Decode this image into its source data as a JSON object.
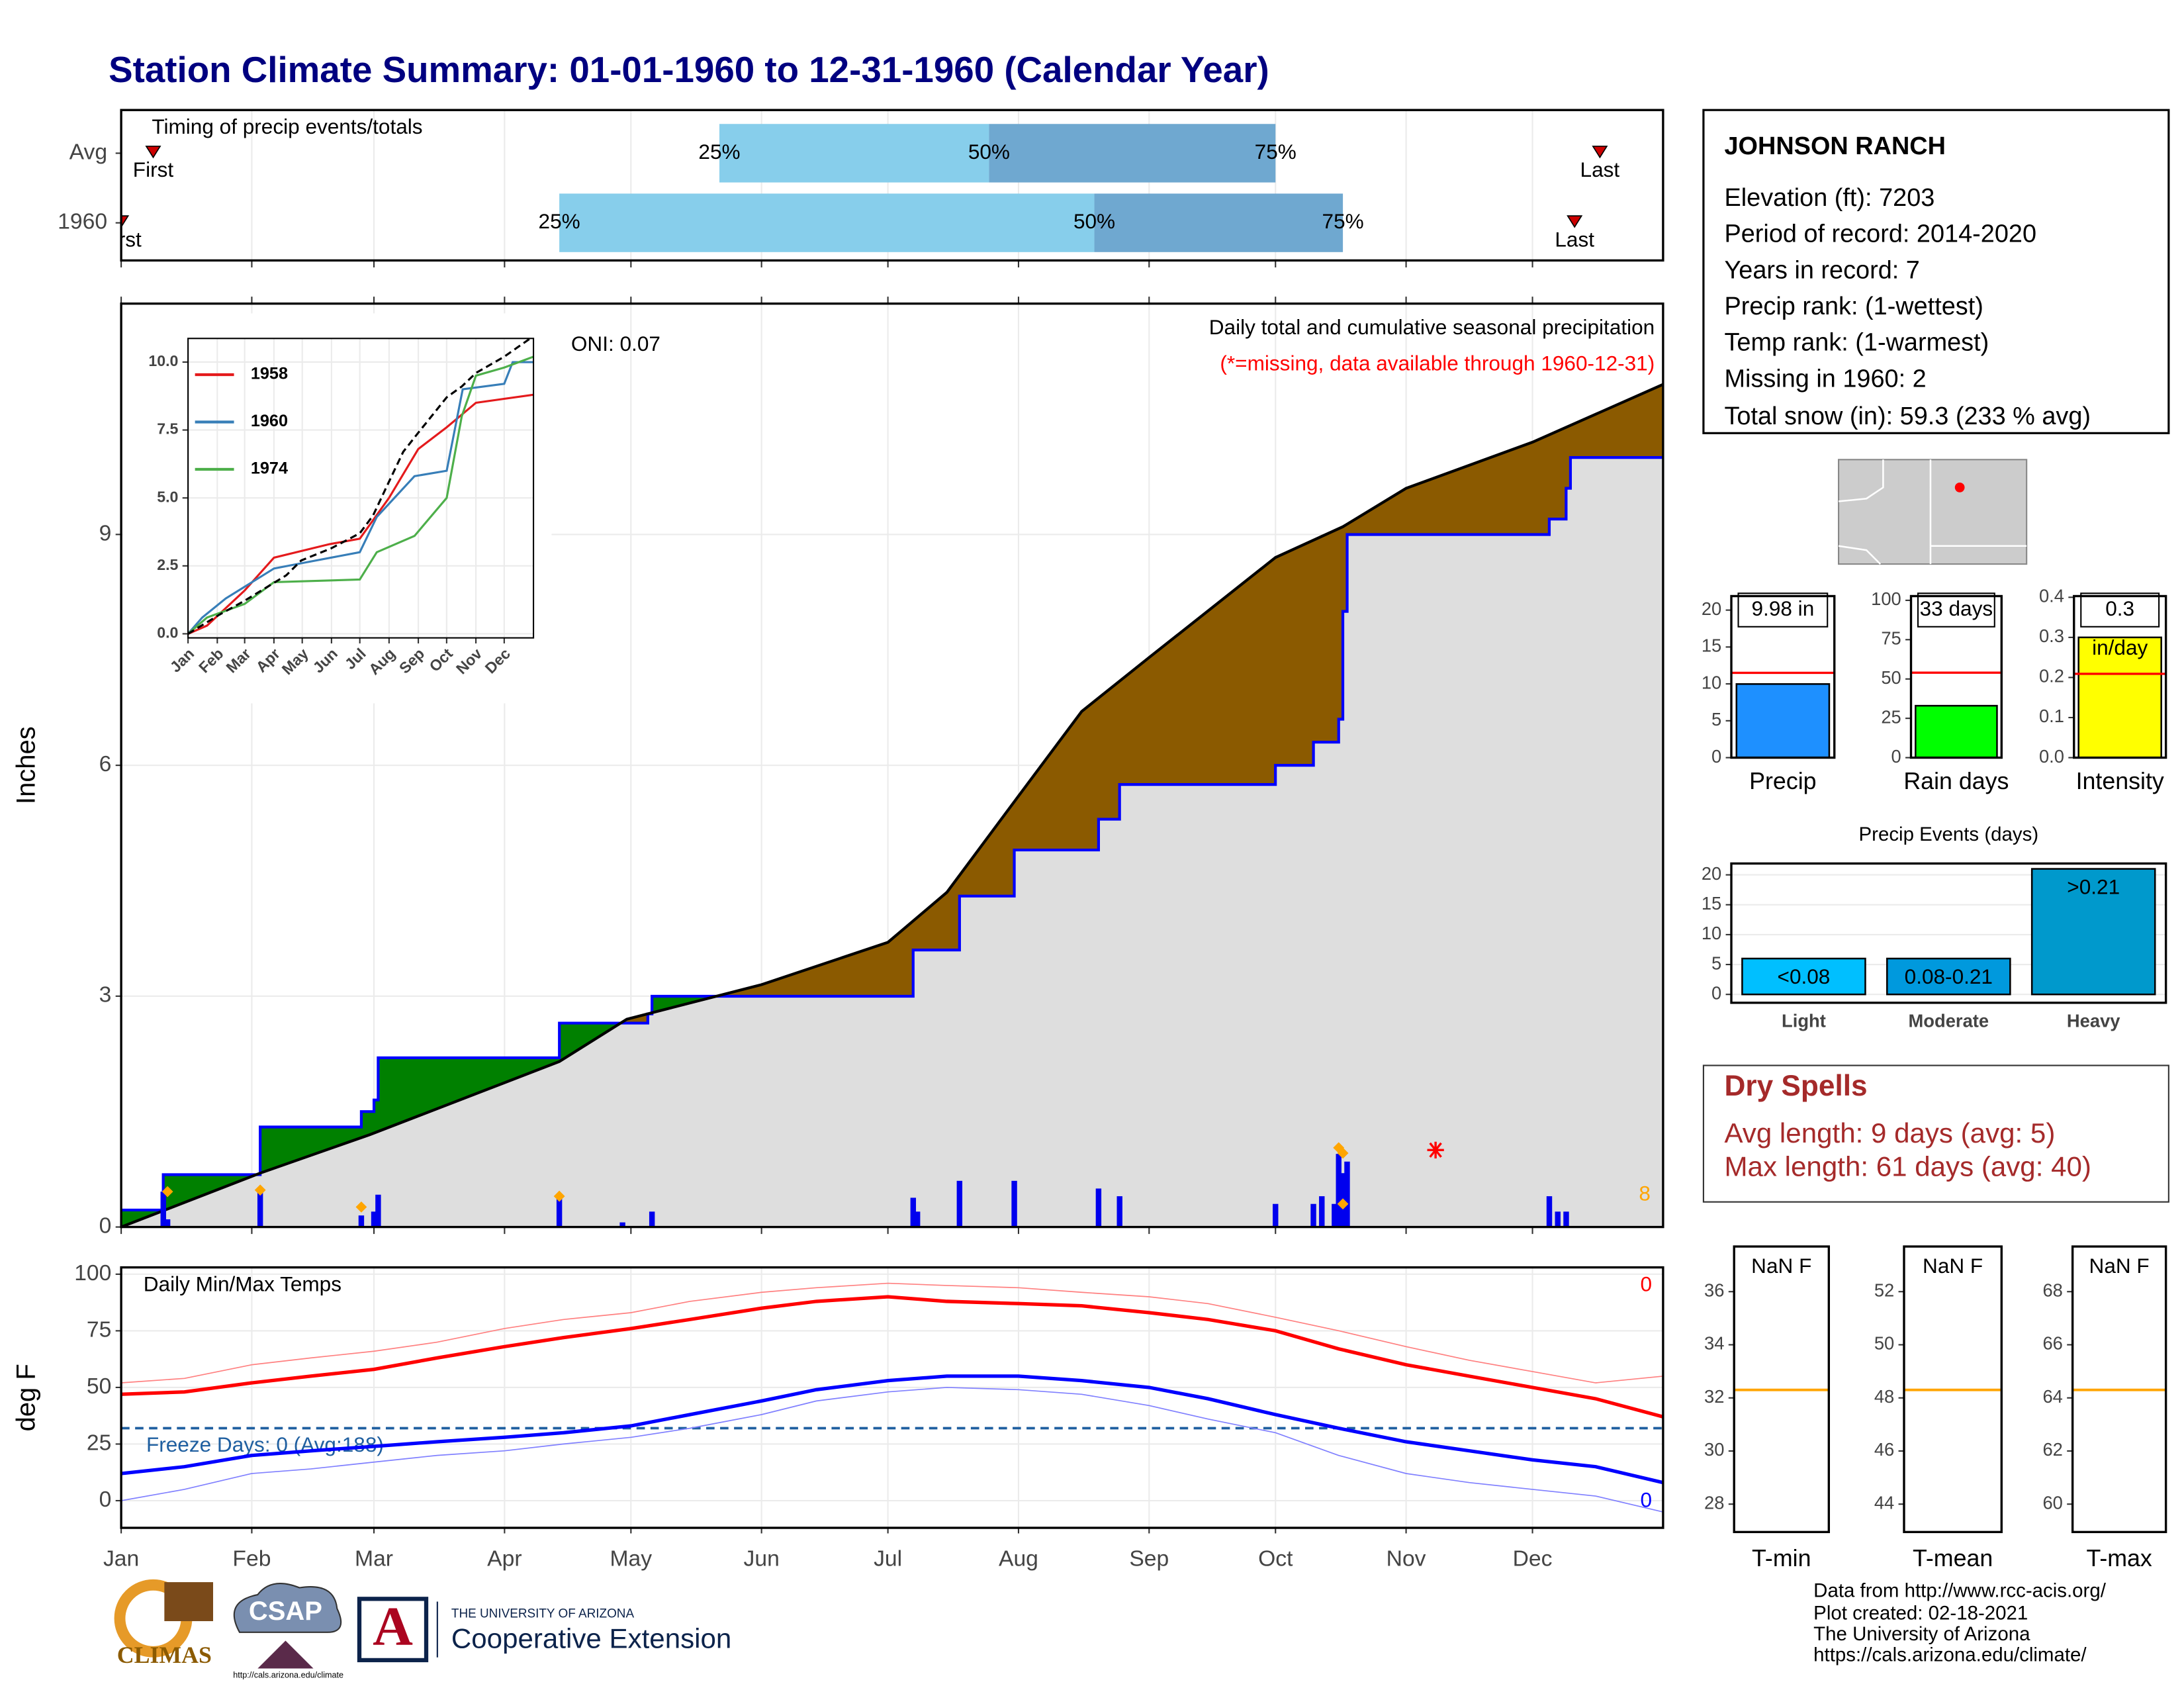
{
  "title": "Station Climate Summary: 01-01-1960 to 12-31-1960 (Calendar Year)",
  "station": {
    "name": "JOHNSON RANCH",
    "lines": [
      "Elevation (ft): 7203",
      "Period of record: 2014-2020",
      "Years in record: 7",
      "Precip rank:  (1-wettest)",
      "Temp rank:  (1-warmest)",
      "Missing in 1960: 2",
      "Total snow (in): 59.3 (233 % avg)"
    ]
  },
  "dry_spells": {
    "title": "Dry Spells",
    "lines": [
      "Avg length: 9 days (avg: 5)",
      "Max length: 61 days (avg: 40)"
    ]
  },
  "footer": {
    "credits": [
      "Data from http://www.rcc-acis.org/",
      "Plot created: 02-18-2021",
      "The University of Arizona",
      "https://cals.arizona.edu/climate/"
    ],
    "climas": "CLIMAS",
    "csap": "CSAP",
    "csap_url": "http://cals.arizona.edu/climate",
    "ua_letter": "A",
    "ua_small": "THE UNIVERSITY OF ARIZONA",
    "ua_big": "Cooperative Extension"
  },
  "chart_data": [
    {
      "type": "timing",
      "title": "Timing of precip events/totals",
      "xlim": [
        0,
        366
      ],
      "xticks": [
        0,
        31,
        60,
        91,
        121,
        152,
        182,
        213,
        244,
        274,
        305,
        335
      ],
      "labels": {
        "first": "First",
        "last": "Last",
        "p25": "25%",
        "p50": "50%",
        "p75": "75%"
      },
      "colors": [
        "#87ceeb",
        "#6fa8d0"
      ],
      "marker_color": "#cc0000",
      "rows": [
        {
          "name": "Avg",
          "first": 7.6,
          "p25": 142,
          "p50": 206,
          "p75": 274,
          "last": 351
        },
        {
          "name": "1960",
          "first": 0,
          "p25": 104,
          "p50": 231,
          "p75": 290,
          "last": 345
        }
      ]
    },
    {
      "type": "cumulative",
      "title": "Daily total and cumulative seasonal precipitation",
      "subtitle": "(*=missing, data available through 1960-12-31)",
      "subtitle_color": "#ff0000",
      "oni": "ONI: 0.07",
      "count": 8,
      "count_color": "#ffa500",
      "ylabel": "Inches",
      "xlim": [
        0,
        366
      ],
      "xticks": [
        0,
        31,
        60,
        91,
        121,
        152,
        182,
        213,
        244,
        274,
        305,
        335
      ],
      "ylim": [
        0,
        12
      ],
      "yticks": [
        0,
        3,
        6,
        9
      ],
      "grid": true,
      "above_color": "#008000",
      "below_color": "#8b5a00",
      "base_color": "#dedede",
      "series": [
        {
          "color": "#0000ff",
          "x": [
            0,
            10,
            10,
            33,
            33,
            57,
            57,
            60,
            60,
            61,
            61,
            104,
            104,
            125,
            125,
            126,
            126,
            188,
            188,
            199,
            199,
            212,
            212,
            232,
            232,
            237,
            237,
            274,
            274,
            283,
            283,
            289,
            289,
            290,
            290,
            291,
            291,
            339,
            339,
            343,
            343,
            344,
            344,
            366
          ],
          "values": [
            0.22,
            0.22,
            0.68,
            0.68,
            1.3,
            1.3,
            1.5,
            1.5,
            1.65,
            1.65,
            2.2,
            2.2,
            2.65,
            2.65,
            2.77,
            2.77,
            3.0,
            3.0,
            3.6,
            3.6,
            4.3,
            4.3,
            4.9,
            4.9,
            5.3,
            5.3,
            5.75,
            5.75,
            6.0,
            6.0,
            6.3,
            6.3,
            6.6,
            6.6,
            8.0,
            8.0,
            9.0,
            9.0,
            9.2,
            9.2,
            9.6,
            9.6,
            10.0,
            10.0
          ]
        },
        {
          "color": "#000000",
          "x": [
            0,
            33,
            59,
            104,
            120,
            152,
            182,
            196,
            213,
            228,
            244,
            274,
            290,
            305,
            335,
            366
          ],
          "values": [
            0,
            0.7,
            1.2,
            2.15,
            2.7,
            3.15,
            3.7,
            4.35,
            5.6,
            6.7,
            7.4,
            8.7,
            9.1,
            9.6,
            10.2,
            10.95
          ]
        }
      ],
      "bars": {
        "color": "#0000ee",
        "x": [
          10,
          11,
          33,
          57,
          60,
          61,
          104,
          119,
          126,
          188,
          189,
          199,
          212,
          232,
          237,
          274,
          283,
          285,
          288,
          289,
          290,
          291,
          339,
          341,
          343
        ],
        "values": [
          0.46,
          0.1,
          0.5,
          0.15,
          0.2,
          0.42,
          0.38,
          0.06,
          0.2,
          0.38,
          0.2,
          0.6,
          0.6,
          0.5,
          0.4,
          0.3,
          0.3,
          0.4,
          0.3,
          0.95,
          0.7,
          0.85,
          0.4,
          0.2,
          0.2
        ]
      },
      "diamonds": {
        "color": "#ffa500",
        "x": [
          11,
          33,
          57,
          104,
          289,
          290,
          290
        ],
        "values": [
          0.46,
          0.48,
          0.26,
          0.4,
          1.03,
          0.96,
          0.3
        ]
      },
      "missing": {
        "color": "#ff0000",
        "x": [
          312
        ],
        "values": [
          1.0
        ]
      }
    },
    {
      "type": "line",
      "xlim": [
        0,
        366
      ],
      "xticks": [
        {
          "value": 0,
          "label": "Jan"
        },
        {
          "value": 31,
          "label": "Feb"
        },
        {
          "value": 60,
          "label": "Mar"
        },
        {
          "value": 91,
          "label": "Apr"
        },
        {
          "value": 121,
          "label": "May"
        },
        {
          "value": 152,
          "label": "Jun"
        },
        {
          "value": 182,
          "label": "Jul"
        },
        {
          "value": 213,
          "label": "Aug"
        },
        {
          "value": 244,
          "label": "Sep"
        },
        {
          "value": 274,
          "label": "Oct"
        },
        {
          "value": 305,
          "label": "Nov"
        },
        {
          "value": 335,
          "label": "Dec"
        }
      ],
      "ylim": [
        -0.15,
        10.87
      ],
      "yticks": [
        {
          "value": 0,
          "label": "0.0"
        },
        2.5,
        {
          "value": 5,
          "label": "5.0"
        },
        7.5,
        {
          "value": 10,
          "label": "10.0"
        }
      ],
      "grid": true,
      "series": [
        {
          "name": "1958",
          "color": "#e41a1c",
          "x": [
            0,
            20,
            60,
            91,
            150,
            182,
            213,
            244,
            274,
            305,
            366
          ],
          "values": [
            0,
            0.3,
            1.6,
            2.8,
            3.3,
            3.5,
            5.0,
            6.8,
            7.6,
            8.5,
            8.8
          ]
        },
        {
          "name": "1960",
          "color": "#377eb8",
          "x": [
            0,
            15,
            40,
            91,
            121,
            182,
            200,
            240,
            274,
            291,
            335,
            344,
            366
          ],
          "values": [
            0,
            0.6,
            1.3,
            2.4,
            2.6,
            3.0,
            4.3,
            5.8,
            6.0,
            9.0,
            9.2,
            10.0,
            10.0
          ]
        },
        {
          "name": "1974",
          "color": "#4daf4a",
          "x": [
            0,
            20,
            60,
            91,
            182,
            200,
            240,
            274,
            290,
            305,
            335,
            366
          ],
          "values": [
            0,
            0.6,
            1.1,
            1.9,
            2.0,
            3.0,
            3.6,
            5.0,
            8.0,
            9.5,
            9.8,
            10.2
          ]
        },
        {
          "color": "#000000",
          "dash": true,
          "x": [
            0,
            33,
            59,
            104,
            120,
            152,
            182,
            196,
            213,
            228,
            244,
            274,
            290,
            305,
            335,
            366
          ],
          "values": [
            0,
            0.7,
            1.2,
            2.15,
            2.7,
            3.15,
            3.7,
            4.35,
            5.6,
            6.7,
            7.4,
            8.7,
            9.1,
            9.6,
            10.2,
            10.95
          ]
        }
      ]
    },
    {
      "type": "line",
      "title": "Daily Min/Max Temps",
      "ylabel": "deg F",
      "count_top": 0,
      "count_top_color": "#ff0000",
      "count_bottom": 0,
      "count_bottom_color": "#0000ff",
      "freeze_line": 32,
      "freeze_label": "Freeze Days: 0 (Avg:188)",
      "freeze_color": "#1f5fa0",
      "xlim": [
        0,
        366
      ],
      "xticks": [
        {
          "value": 0,
          "label": "Jan"
        },
        {
          "value": 31,
          "label": "Feb"
        },
        {
          "value": 60,
          "label": "Mar"
        },
        {
          "value": 91,
          "label": "Apr"
        },
        {
          "value": 121,
          "label": "May"
        },
        {
          "value": 152,
          "label": "Jun"
        },
        {
          "value": 182,
          "label": "Jul"
        },
        {
          "value": 213,
          "label": "Aug"
        },
        {
          "value": 244,
          "label": "Sep"
        },
        {
          "value": 274,
          "label": "Oct"
        },
        {
          "value": 305,
          "label": "Nov"
        },
        {
          "value": 335,
          "label": "Dec"
        }
      ],
      "ylim": [
        -12,
        103
      ],
      "yticks": [
        0,
        25,
        50,
        75,
        100
      ],
      "grid": true,
      "x": [
        0,
        15,
        31,
        45,
        60,
        75,
        91,
        105,
        121,
        135,
        152,
        165,
        182,
        196,
        213,
        228,
        244,
        258,
        274,
        289,
        305,
        320,
        335,
        350,
        366
      ],
      "series": [
        {
          "color": "#ff8080",
          "weight": "light",
          "values": [
            52,
            54,
            60,
            63,
            66,
            70,
            76,
            80,
            83,
            88,
            92,
            94,
            96,
            95,
            94,
            92,
            90,
            87,
            81,
            75,
            68,
            62,
            57,
            52,
            55
          ]
        },
        {
          "color": "#ff0000",
          "weight": "bold",
          "values": [
            47,
            48,
            52,
            55,
            58,
            63,
            68,
            72,
            76,
            80,
            85,
            88,
            90,
            88,
            87,
            86,
            83,
            80,
            75,
            67,
            60,
            55,
            50,
            45,
            37
          ]
        },
        {
          "color": "#8080ff",
          "weight": "light",
          "values": [
            0,
            5,
            12,
            14,
            17,
            20,
            22,
            25,
            28,
            32,
            38,
            44,
            48,
            50,
            49,
            47,
            42,
            36,
            30,
            20,
            12,
            8,
            5,
            2,
            -5
          ]
        },
        {
          "color": "#0000ff",
          "weight": "bold",
          "values": [
            12,
            15,
            20,
            22,
            24,
            26,
            28,
            30,
            33,
            38,
            44,
            49,
            53,
            55,
            55,
            53,
            50,
            45,
            38,
            32,
            26,
            22,
            18,
            15,
            8
          ]
        }
      ]
    },
    {
      "type": "bar",
      "categories": [
        "Precip"
      ],
      "values": [
        9.98
      ],
      "value_labels": [
        "9.98 in"
      ],
      "color": "#1e90ff",
      "reference": 11.5,
      "reference_color": "#ff0000",
      "ylim": [
        0,
        21.9
      ],
      "yticks": [
        0,
        5,
        10,
        15,
        20
      ]
    },
    {
      "type": "bar",
      "categories": [
        "Rain days"
      ],
      "values": [
        33
      ],
      "value_labels": [
        "33 days"
      ],
      "color": "#00ff00",
      "reference": 54,
      "reference_color": "#ff0000",
      "ylim": [
        0,
        102.7
      ],
      "yticks": [
        0,
        25,
        50,
        75,
        100
      ]
    },
    {
      "type": "bar",
      "categories": [
        "Intensity"
      ],
      "values": [
        0.3
      ],
      "value_labels": [
        "0.3"
      ],
      "unit": "in/day",
      "color": "#ffff00",
      "reference": 0.209,
      "reference_color": "#ff0000",
      "ylim": [
        0,
        0.403
      ],
      "yticks": [
        {
          "value": 0,
          "label": "0.0"
        },
        0.1,
        0.2,
        0.3,
        0.4
      ]
    },
    {
      "type": "bar",
      "title": "Precip Events (days)",
      "categories": [
        "Light",
        "Moderate",
        "Heavy"
      ],
      "values": [
        6,
        6,
        21
      ],
      "bar_labels": [
        "<0.08",
        "0.08-0.21",
        ">0.21"
      ],
      "colors": [
        "#00bfff",
        "#0099dd",
        "#0099cc"
      ],
      "ylim": [
        -1.4,
        21.9
      ],
      "yticks": [
        0,
        5,
        10,
        15,
        20
      ],
      "grid": true
    },
    {
      "type": "reference",
      "category": "T-min",
      "value_label": "NaN F",
      "reference": 32.3,
      "reference_color": "#ffa500",
      "ylim": [
        26.95,
        37.7
      ],
      "yticks": [
        28,
        30,
        32,
        34,
        36
      ]
    },
    {
      "type": "reference",
      "category": "T-mean",
      "value_label": "NaN F",
      "reference": 48.3,
      "reference_color": "#ffa500",
      "ylim": [
        42.95,
        53.7
      ],
      "yticks": [
        44,
        46,
        48,
        50,
        52
      ]
    },
    {
      "type": "reference",
      "category": "T-max",
      "value_label": "NaN F",
      "reference": 64.3,
      "reference_color": "#ffa500",
      "ylim": [
        58.95,
        69.7
      ],
      "yticks": [
        60,
        62,
        64,
        66,
        68
      ]
    }
  ]
}
